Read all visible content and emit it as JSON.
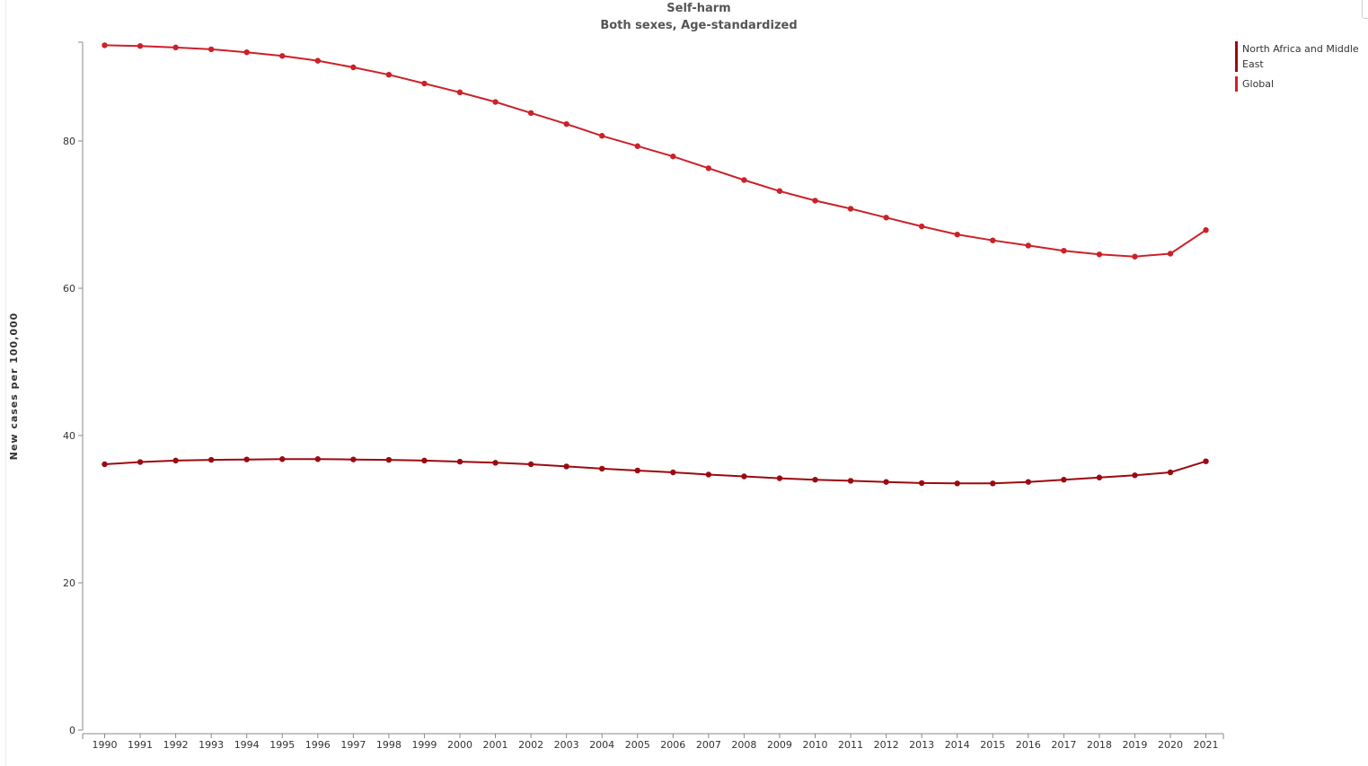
{
  "chart_data": {
    "type": "line",
    "title": "Self-harm",
    "subtitle": "Both sexes, Age-standardized",
    "xlabel": "",
    "ylabel": "New cases per 100,000",
    "ylim": [
      0,
      93
    ],
    "yticks": [
      0,
      20,
      40,
      60,
      80
    ],
    "grid": false,
    "legend_position": "top-right",
    "x": [
      1990,
      1991,
      1992,
      1993,
      1994,
      1995,
      1996,
      1997,
      1998,
      1999,
      2000,
      2001,
      2002,
      2003,
      2004,
      2005,
      2006,
      2007,
      2008,
      2009,
      2010,
      2011,
      2012,
      2013,
      2014,
      2015,
      2016,
      2017,
      2018,
      2019,
      2020,
      2021
    ],
    "series": [
      {
        "name": "North Africa and Middle East",
        "color": "#9b0a10",
        "values": [
          36.1,
          36.4,
          36.6,
          36.7,
          36.75,
          36.8,
          36.8,
          36.75,
          36.7,
          36.6,
          36.45,
          36.3,
          36.1,
          35.8,
          35.5,
          35.25,
          35.0,
          34.7,
          34.45,
          34.2,
          34.0,
          33.85,
          33.7,
          33.55,
          33.5,
          33.5,
          33.7,
          34.0,
          34.3,
          34.6,
          35.0,
          36.5
        ]
      },
      {
        "name": "Global",
        "color": "#cc2128",
        "values": [
          93.0,
          92.9,
          92.7,
          92.45,
          92.05,
          91.55,
          90.9,
          90.0,
          89.0,
          87.8,
          86.6,
          85.3,
          83.8,
          82.3,
          80.7,
          79.3,
          77.9,
          76.3,
          74.7,
          73.2,
          71.9,
          70.8,
          69.6,
          68.4,
          67.3,
          66.5,
          65.8,
          65.1,
          64.6,
          64.3,
          64.7,
          67.9
        ]
      }
    ]
  }
}
